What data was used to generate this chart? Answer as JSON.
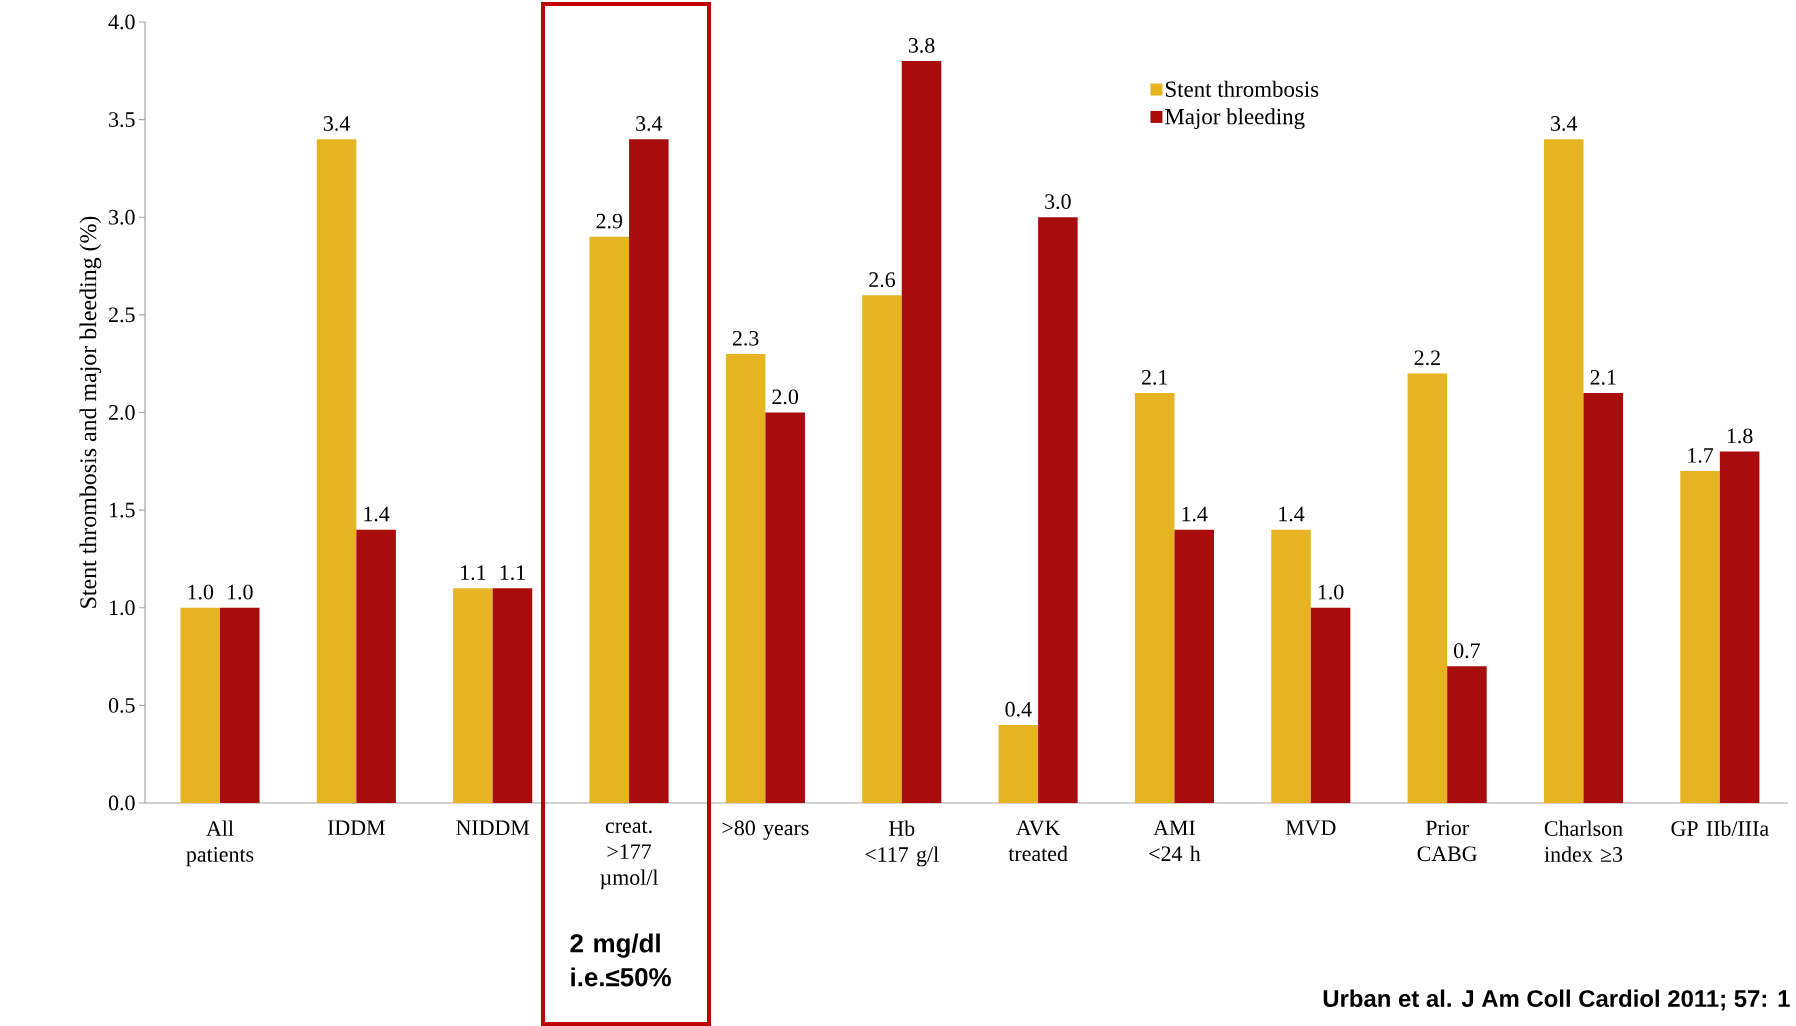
{
  "chart_data": {
    "type": "bar",
    "ylabel": "Stent thrombosis and major bleeding (%)",
    "categories": [
      "All patients",
      "IDDM",
      "NIDDM",
      "creat. >177 µmol/l",
      ">80 years",
      "Hb <117 g/l",
      "AVK treated",
      "AMI <24 h",
      "MVD",
      "Prior CABG",
      "Charlson index ≥3",
      "GP IIb/IIIa"
    ],
    "series": [
      {
        "name": "Stent thrombosis",
        "color": "#e6b422",
        "values": [
          1.0,
          3.4,
          1.1,
          2.9,
          2.3,
          2.6,
          0.4,
          2.1,
          1.4,
          2.2,
          3.4,
          1.7
        ],
        "value_labels": [
          "1.0",
          "3.4",
          "1.1",
          "2.9",
          "2.3",
          "2.6",
          "0.4",
          "2.1",
          "1.4",
          "2.2",
          "3.4",
          "1.7"
        ]
      },
      {
        "name": "Major bleeding",
        "color": "#a80c0c",
        "values": [
          1.0,
          1.4,
          1.1,
          3.4,
          2.0,
          3.8,
          3.0,
          1.4,
          1.0,
          0.7,
          2.1,
          1.8
        ],
        "value_labels": [
          "1.0",
          "1.4",
          "1.1",
          "3.4",
          "2.0",
          "3.8",
          "3.0",
          "1.4",
          "1.0",
          "0.7",
          "2.1",
          "1.8"
        ]
      }
    ],
    "ylim": [
      0,
      4.0
    ],
    "yticks": [
      {
        "value": 0,
        "label": "0.0"
      },
      {
        "value": 0.5,
        "label": "0.5"
      },
      {
        "value": 1.0,
        "label": "1.0"
      },
      {
        "value": 1.5,
        "label": "1.5"
      },
      {
        "value": 2.0,
        "label": "2.0"
      },
      {
        "value": 2.5,
        "label": "2.5"
      },
      {
        "value": 3.0,
        "label": "3.0"
      },
      {
        "value": 3.5,
        "label": "3.5"
      },
      {
        "value": 4.0,
        "label": "4.0"
      }
    ],
    "legend": "top",
    "grid": false,
    "annotations": [
      "2 mg/dl i.e.≤50%",
      "Urban et al. J Am Coll Cardiol 2011; 57: 1"
    ]
  }
}
